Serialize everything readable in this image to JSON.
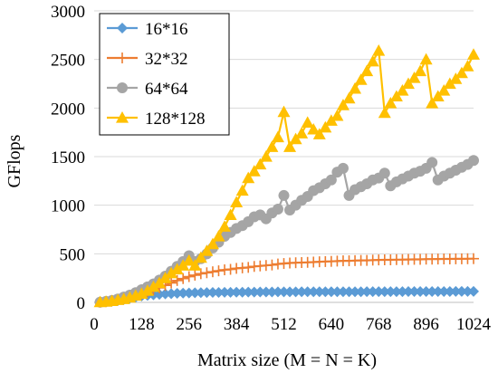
{
  "chart_data": {
    "type": "line",
    "title": "",
    "xlabel": "Matrix size (M = N = K)",
    "ylabel": "GFlops",
    "xlim": [
      0,
      1024
    ],
    "ylim": [
      0,
      3000
    ],
    "xticks": [
      0,
      128,
      256,
      384,
      512,
      640,
      768,
      896,
      1024
    ],
    "yticks": [
      0,
      500,
      1000,
      1500,
      2000,
      2500,
      3000
    ],
    "xtick_labels": [
      "0",
      "128",
      "256",
      "384",
      "512",
      "640",
      "768",
      "896",
      "1024"
    ],
    "ytick_labels": [
      "0",
      "500",
      "1000",
      "1500",
      "2000",
      "2500",
      "3000"
    ],
    "grid": true,
    "legend_position": "top-left",
    "series": [
      {
        "name": "16*16",
        "color": "#5B9BD5",
        "marker": "diamond",
        "x": [
          16,
          32,
          48,
          64,
          80,
          96,
          112,
          128,
          144,
          160,
          176,
          192,
          208,
          224,
          240,
          256,
          272,
          288,
          304,
          320,
          336,
          352,
          368,
          384,
          400,
          416,
          432,
          448,
          464,
          480,
          496,
          512,
          528,
          544,
          560,
          576,
          592,
          608,
          624,
          640,
          656,
          672,
          688,
          704,
          720,
          736,
          752,
          768,
          784,
          800,
          816,
          832,
          848,
          864,
          880,
          896,
          912,
          928,
          944,
          960,
          976,
          992,
          1008,
          1024
        ],
        "y": [
          2,
          6,
          12,
          20,
          30,
          42,
          55,
          65,
          72,
          78,
          83,
          87,
          90,
          93,
          95,
          97,
          99,
          100,
          101,
          102,
          103,
          104,
          104,
          105,
          105,
          106,
          106,
          107,
          107,
          107,
          108,
          108,
          108,
          108,
          109,
          109,
          109,
          109,
          109,
          110,
          110,
          110,
          110,
          110,
          110,
          111,
          111,
          111,
          111,
          111,
          111,
          111,
          112,
          112,
          112,
          112,
          112,
          112,
          112,
          112,
          113,
          113,
          113,
          113
        ]
      },
      {
        "name": "32*32",
        "color": "#ED7D31",
        "marker": "plus",
        "x": [
          16,
          32,
          48,
          64,
          80,
          96,
          112,
          128,
          144,
          160,
          176,
          192,
          208,
          224,
          240,
          256,
          272,
          288,
          304,
          320,
          336,
          352,
          368,
          384,
          400,
          416,
          432,
          448,
          464,
          480,
          496,
          512,
          528,
          544,
          560,
          576,
          592,
          608,
          624,
          640,
          656,
          672,
          688,
          704,
          720,
          736,
          752,
          768,
          784,
          800,
          816,
          832,
          848,
          864,
          880,
          896,
          912,
          928,
          944,
          960,
          976,
          992,
          1008,
          1024
        ],
        "y": [
          2,
          8,
          18,
          30,
          45,
          60,
          75,
          90,
          110,
          130,
          150,
          175,
          200,
          225,
          245,
          265,
          280,
          295,
          305,
          315,
          325,
          335,
          340,
          350,
          355,
          360,
          370,
          375,
          380,
          385,
          395,
          400,
          405,
          408,
          410,
          412,
          415,
          418,
          420,
          422,
          425,
          428,
          428,
          430,
          432,
          432,
          435,
          437,
          438,
          438,
          440,
          440,
          442,
          443,
          443,
          445,
          445,
          446,
          447,
          447,
          448,
          448,
          449,
          450
        ]
      },
      {
        "name": "64*64",
        "color": "#A5A5A5",
        "marker": "circle",
        "x": [
          16,
          32,
          48,
          64,
          80,
          96,
          112,
          128,
          144,
          160,
          176,
          192,
          208,
          224,
          240,
          256,
          272,
          288,
          304,
          320,
          336,
          352,
          368,
          384,
          400,
          416,
          432,
          448,
          464,
          480,
          496,
          512,
          528,
          544,
          560,
          576,
          592,
          608,
          624,
          640,
          656,
          672,
          688,
          704,
          720,
          736,
          752,
          768,
          784,
          800,
          816,
          832,
          848,
          864,
          880,
          896,
          912,
          928,
          944,
          960,
          976,
          992,
          1008,
          1024
        ],
        "y": [
          2,
          10,
          20,
          35,
          55,
          75,
          100,
          130,
          160,
          190,
          230,
          270,
          320,
          370,
          420,
          480,
          420,
          450,
          500,
          560,
          620,
          680,
          720,
          760,
          790,
          830,
          880,
          900,
          860,
          920,
          960,
          1100,
          950,
          1000,
          1050,
          1090,
          1150,
          1180,
          1220,
          1260,
          1340,
          1380,
          1100,
          1160,
          1190,
          1220,
          1260,
          1280,
          1330,
          1200,
          1240,
          1270,
          1300,
          1330,
          1350,
          1380,
          1440,
          1260,
          1300,
          1330,
          1360,
          1390,
          1420,
          1460
        ]
      },
      {
        "name": "128*128",
        "color": "#FFC000",
        "marker": "triangle",
        "x": [
          16,
          32,
          48,
          64,
          80,
          96,
          112,
          128,
          144,
          160,
          176,
          192,
          208,
          224,
          240,
          256,
          272,
          288,
          304,
          320,
          336,
          352,
          368,
          384,
          400,
          416,
          432,
          448,
          464,
          480,
          496,
          512,
          528,
          544,
          560,
          576,
          592,
          608,
          624,
          640,
          656,
          672,
          688,
          704,
          720,
          736,
          752,
          768,
          784,
          800,
          816,
          832,
          848,
          864,
          880,
          896,
          912,
          928,
          944,
          960,
          976,
          992,
          1008,
          1024
        ],
        "y": [
          3,
          8,
          15,
          25,
          35,
          50,
          70,
          90,
          120,
          160,
          200,
          250,
          300,
          340,
          380,
          430,
          380,
          460,
          530,
          600,
          680,
          780,
          900,
          1030,
          1150,
          1280,
          1350,
          1420,
          1500,
          1600,
          1700,
          1960,
          1600,
          1680,
          1740,
          1850,
          1780,
          1730,
          1800,
          1870,
          1920,
          2030,
          2100,
          2200,
          2290,
          2380,
          2480,
          2590,
          1950,
          2050,
          2120,
          2180,
          2250,
          2310,
          2380,
          2500,
          2050,
          2120,
          2180,
          2250,
          2300,
          2360,
          2430,
          2550
        ]
      }
    ]
  }
}
